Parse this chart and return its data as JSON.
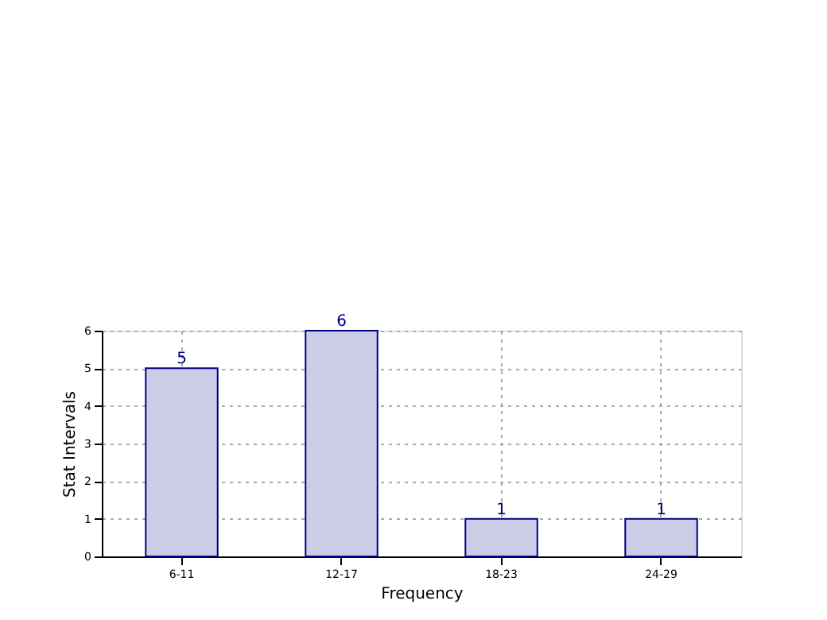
{
  "chart_data": {
    "type": "bar",
    "xlabel": "Frequency",
    "ylabel": "Stat Intervals",
    "categories": [
      "6-11",
      "12-17",
      "18-23",
      "24-29"
    ],
    "values": [
      5,
      6,
      1,
      1
    ],
    "color": "#cccce6",
    "ylim": [
      0,
      6
    ],
    "yticks": [
      0,
      1,
      2,
      3,
      4,
      5,
      6
    ],
    "grid": true,
    "data_labels": true
  }
}
